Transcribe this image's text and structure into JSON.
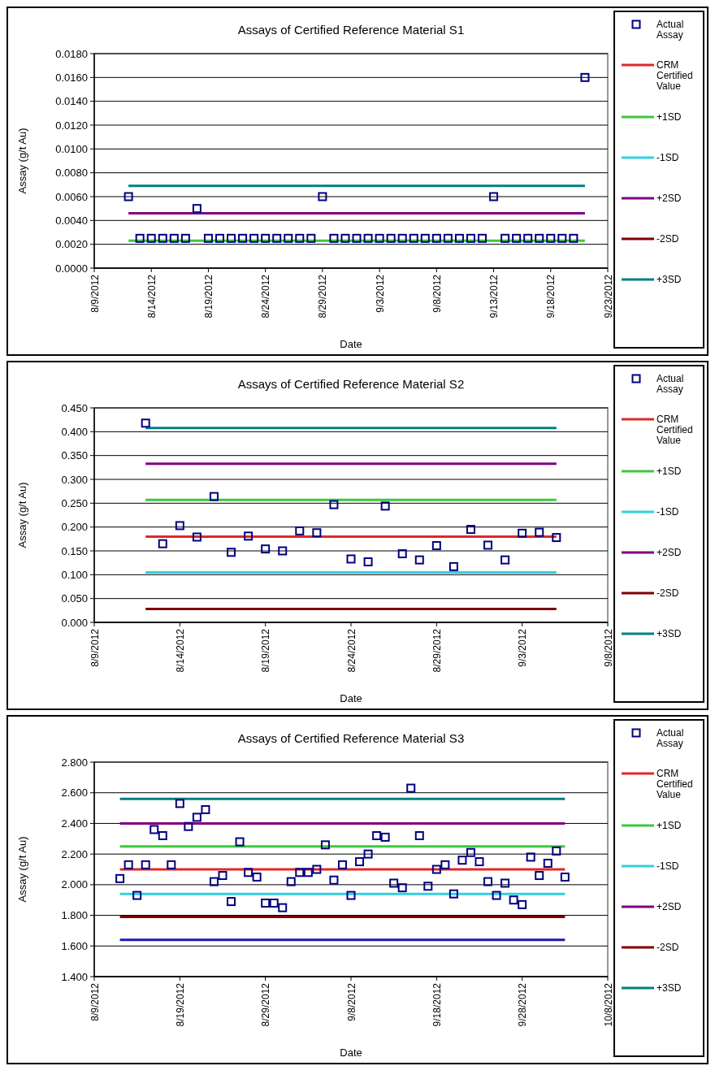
{
  "chart_data": [
    {
      "type": "scatter",
      "title": "Assays of Certified Reference Material  S1",
      "xlabel": "Date",
      "ylabel": "Assay (g/t Au)",
      "grid": "y",
      "legend": "right",
      "xlim": [
        "2012-08-09",
        "2012-09-23"
      ],
      "xticks": [
        {
          "value": "2012-08-09",
          "label": "8/9/2012"
        },
        {
          "value": "2012-08-14",
          "label": "8/14/2012"
        },
        {
          "value": "2012-08-19",
          "label": "8/19/2012"
        },
        {
          "value": "2012-08-24",
          "label": "8/24/2012"
        },
        {
          "value": "2012-08-29",
          "label": "8/29/2012"
        },
        {
          "value": "2012-09-03",
          "label": "9/3/2012"
        },
        {
          "value": "2012-09-08",
          "label": "9/8/2012"
        },
        {
          "value": "2012-09-13",
          "label": "9/13/2012"
        },
        {
          "value": "2012-09-18",
          "label": "9/18/2012"
        },
        {
          "value": "2012-09-23",
          "label": "9/23/2012"
        }
      ],
      "ylim": [
        0,
        0.018
      ],
      "yticks": [
        {
          "value": 0,
          "label": "0.0000"
        },
        {
          "value": 0.002,
          "label": "0.0020"
        },
        {
          "value": 0.004,
          "label": "0.0040"
        },
        {
          "value": 0.006,
          "label": "0.0060"
        },
        {
          "value": 0.008,
          "label": "0.0080"
        },
        {
          "value": 0.01,
          "label": "0.0100"
        },
        {
          "value": 0.012,
          "label": "0.0120"
        },
        {
          "value": 0.014,
          "label": "0.0140"
        },
        {
          "value": 0.016,
          "label": "0.0160"
        },
        {
          "value": 0.018,
          "label": "0.0180"
        }
      ],
      "series": [
        {
          "name": "CRM Certified Value",
          "type": "line",
          "color": "#e02828"
        },
        {
          "name": "+1SD",
          "type": "line",
          "color": "#3cc83c",
          "x": [
            "2012-08-12",
            "2012-09-21"
          ],
          "values": [
            0.0023,
            0.0023
          ]
        },
        {
          "name": "-1SD",
          "type": "line",
          "color": "#30d0e0"
        },
        {
          "name": "+2SD",
          "type": "line",
          "color": "#800080",
          "x": [
            "2012-08-12",
            "2012-09-21"
          ],
          "values": [
            0.0046,
            0.0046
          ]
        },
        {
          "name": "-2SD",
          "type": "line",
          "color": "#800000"
        },
        {
          "name": "+3SD",
          "type": "line",
          "color": "#008080",
          "x": [
            "2012-08-12",
            "2012-09-21"
          ],
          "values": [
            0.0069,
            0.0069
          ]
        },
        {
          "name": "Actual Assay",
          "type": "scatter",
          "marker": "square",
          "color": "#000080",
          "x": [
            "2012-08-12",
            "2012-08-13",
            "2012-08-14",
            "2012-08-15",
            "2012-08-16",
            "2012-08-17",
            "2012-08-18",
            "2012-08-19",
            "2012-08-20",
            "2012-08-21",
            "2012-08-22",
            "2012-08-23",
            "2012-08-24",
            "2012-08-25",
            "2012-08-26",
            "2012-08-27",
            "2012-08-28",
            "2012-08-29",
            "2012-08-30",
            "2012-08-31",
            "2012-09-01",
            "2012-09-02",
            "2012-09-03",
            "2012-09-04",
            "2012-09-05",
            "2012-09-06",
            "2012-09-07",
            "2012-09-08",
            "2012-09-09",
            "2012-09-10",
            "2012-09-11",
            "2012-09-12",
            "2012-09-13",
            "2012-09-14",
            "2012-09-15",
            "2012-09-16",
            "2012-09-17",
            "2012-09-18",
            "2012-09-19",
            "2012-09-20",
            "2012-09-21"
          ],
          "values": [
            0.006,
            0.0025,
            0.0025,
            0.0025,
            0.0025,
            0.0025,
            0.005,
            0.0025,
            0.0025,
            0.0025,
            0.0025,
            0.0025,
            0.0025,
            0.0025,
            0.0025,
            0.0025,
            0.0025,
            0.006,
            0.0025,
            0.0025,
            0.0025,
            0.0025,
            0.0025,
            0.0025,
            0.0025,
            0.0025,
            0.0025,
            0.0025,
            0.0025,
            0.0025,
            0.0025,
            0.0025,
            0.006,
            0.0025,
            0.0025,
            0.0025,
            0.0025,
            0.0025,
            0.0025,
            0.0025,
            0.016
          ]
        }
      ]
    },
    {
      "type": "scatter",
      "title": "Assays of Certified Reference Material  S2",
      "xlabel": "Date",
      "ylabel": "Assay (g/t Au)",
      "grid": "y",
      "legend": "right",
      "xlim": [
        "2012-08-09",
        "2012-09-08"
      ],
      "xticks": [
        {
          "value": "2012-08-09",
          "label": "8/9/2012"
        },
        {
          "value": "2012-08-14",
          "label": "8/14/2012"
        },
        {
          "value": "2012-08-19",
          "label": "8/19/2012"
        },
        {
          "value": "2012-08-24",
          "label": "8/24/2012"
        },
        {
          "value": "2012-08-29",
          "label": "8/29/2012"
        },
        {
          "value": "2012-09-03",
          "label": "9/3/2012"
        },
        {
          "value": "2012-09-08",
          "label": "9/8/2012"
        }
      ],
      "ylim": [
        0,
        0.45
      ],
      "yticks": [
        {
          "value": 0,
          "label": "0.000"
        },
        {
          "value": 0.05,
          "label": "0.050"
        },
        {
          "value": 0.1,
          "label": "0.100"
        },
        {
          "value": 0.15,
          "label": "0.150"
        },
        {
          "value": 0.2,
          "label": "0.200"
        },
        {
          "value": 0.25,
          "label": "0.250"
        },
        {
          "value": 0.3,
          "label": "0.300"
        },
        {
          "value": 0.35,
          "label": "0.350"
        },
        {
          "value": 0.4,
          "label": "0.400"
        },
        {
          "value": 0.45,
          "label": "0.450"
        }
      ],
      "series": [
        {
          "name": "CRM Certified Value",
          "type": "line",
          "color": "#e02828",
          "x": [
            "2012-08-12",
            "2012-09-05"
          ],
          "values": [
            0.18,
            0.18
          ]
        },
        {
          "name": "+1SD",
          "type": "line",
          "color": "#3cc83c",
          "x": [
            "2012-08-12",
            "2012-09-05"
          ],
          "values": [
            0.257,
            0.257
          ]
        },
        {
          "name": "-1SD",
          "type": "line",
          "color": "#30d0e0",
          "x": [
            "2012-08-12",
            "2012-09-05"
          ],
          "values": [
            0.105,
            0.105
          ]
        },
        {
          "name": "+2SD",
          "type": "line",
          "color": "#800080",
          "x": [
            "2012-08-12",
            "2012-09-05"
          ],
          "values": [
            0.333,
            0.333
          ]
        },
        {
          "name": "-2SD",
          "type": "line",
          "color": "#800000",
          "x": [
            "2012-08-12",
            "2012-09-05"
          ],
          "values": [
            0.028,
            0.028
          ]
        },
        {
          "name": "+3SD",
          "type": "line",
          "color": "#008080",
          "x": [
            "2012-08-12",
            "2012-09-05"
          ],
          "values": [
            0.408,
            0.408
          ]
        },
        {
          "name": "Actual Assay",
          "type": "scatter",
          "marker": "square",
          "color": "#000080",
          "x": [
            "2012-08-12",
            "2012-08-13",
            "2012-08-14",
            "2012-08-15",
            "2012-08-16",
            "2012-08-17",
            "2012-08-18",
            "2012-08-19",
            "2012-08-20",
            "2012-08-21",
            "2012-08-22",
            "2012-08-23",
            "2012-08-24",
            "2012-08-25",
            "2012-08-26",
            "2012-08-27",
            "2012-08-28",
            "2012-08-29",
            "2012-08-30",
            "2012-08-31",
            "2012-09-01",
            "2012-09-02",
            "2012-09-03",
            "2012-09-04",
            "2012-09-05"
          ],
          "values": [
            0.418,
            0.165,
            0.203,
            0.179,
            0.264,
            0.147,
            0.181,
            0.154,
            0.15,
            0.192,
            0.188,
            0.247,
            0.133,
            0.127,
            0.244,
            0.144,
            0.131,
            0.161,
            0.117,
            0.195,
            0.162,
            0.131,
            0.187,
            0.189,
            0.178
          ]
        }
      ]
    },
    {
      "type": "scatter",
      "title": "Assays of Certified Reference Material  S3",
      "xlabel": "Date",
      "ylabel": "Assay (g/t Au)",
      "grid": "y",
      "legend": "right",
      "xlim": [
        "2012-08-09",
        "2012-10-08"
      ],
      "xticks": [
        {
          "value": "2012-08-09",
          "label": "8/9/2012"
        },
        {
          "value": "2012-08-19",
          "label": "8/19/2012"
        },
        {
          "value": "2012-08-29",
          "label": "8/29/2012"
        },
        {
          "value": "2012-09-08",
          "label": "9/8/2012"
        },
        {
          "value": "2012-09-18",
          "label": "9/18/2012"
        },
        {
          "value": "2012-09-28",
          "label": "9/28/2012"
        },
        {
          "value": "2012-10-08",
          "label": "10/8/2012"
        }
      ],
      "ylim": [
        1.4,
        2.8
      ],
      "yticks": [
        {
          "value": 1.4,
          "label": "1.400"
        },
        {
          "value": 1.6,
          "label": "1.600"
        },
        {
          "value": 1.8,
          "label": "1.800"
        },
        {
          "value": 2.0,
          "label": "2.000"
        },
        {
          "value": 2.2,
          "label": "2.200"
        },
        {
          "value": 2.4,
          "label": "2.400"
        },
        {
          "value": 2.6,
          "label": "2.600"
        },
        {
          "value": 2.8,
          "label": "2.800"
        }
      ],
      "series": [
        {
          "name": "CRM Certified Value",
          "type": "line",
          "color": "#e02828",
          "x": [
            "2012-08-12",
            "2012-10-03"
          ],
          "values": [
            2.1,
            2.1
          ]
        },
        {
          "name": "+1SD",
          "type": "line",
          "color": "#3cc83c",
          "x": [
            "2012-08-12",
            "2012-10-03"
          ],
          "values": [
            2.25,
            2.25
          ]
        },
        {
          "name": "-1SD",
          "type": "line",
          "color": "#30d0e0",
          "x": [
            "2012-08-12",
            "2012-10-03"
          ],
          "values": [
            1.94,
            1.94
          ]
        },
        {
          "name": "+2SD",
          "type": "line",
          "color": "#800080",
          "x": [
            "2012-08-12",
            "2012-10-03"
          ],
          "values": [
            2.4,
            2.4
          ]
        },
        {
          "name": "-2SD",
          "type": "line",
          "color": "#800000",
          "x": [
            "2012-08-12",
            "2012-10-03"
          ],
          "values": [
            1.79,
            1.79
          ]
        },
        {
          "name": "+3SD",
          "type": "line",
          "color": "#008080",
          "x": [
            "2012-08-12",
            "2012-10-03"
          ],
          "values": [
            2.56,
            2.56
          ]
        },
        {
          "type": "line",
          "color": "#1a1ab0",
          "x": [
            "2012-08-12",
            "2012-10-03"
          ],
          "values": [
            1.64,
            1.64
          ]
        },
        {
          "name": "Actual Assay",
          "type": "scatter",
          "marker": "square",
          "color": "#000080",
          "x": [
            "2012-08-12",
            "2012-08-13",
            "2012-08-14",
            "2012-08-15",
            "2012-08-16",
            "2012-08-17",
            "2012-08-18",
            "2012-08-19",
            "2012-08-20",
            "2012-08-21",
            "2012-08-22",
            "2012-08-23",
            "2012-08-24",
            "2012-08-25",
            "2012-08-26",
            "2012-08-27",
            "2012-08-28",
            "2012-08-29",
            "2012-08-30",
            "2012-08-31",
            "2012-09-01",
            "2012-09-02",
            "2012-09-03",
            "2012-09-04",
            "2012-09-05",
            "2012-09-06",
            "2012-09-07",
            "2012-09-08",
            "2012-09-09",
            "2012-09-10",
            "2012-09-11",
            "2012-09-12",
            "2012-09-13",
            "2012-09-14",
            "2012-09-15",
            "2012-09-16",
            "2012-09-17",
            "2012-09-18",
            "2012-09-19",
            "2012-09-20",
            "2012-09-21",
            "2012-09-22",
            "2012-09-23",
            "2012-09-24",
            "2012-09-25",
            "2012-09-26",
            "2012-09-27",
            "2012-09-28",
            "2012-09-29",
            "2012-09-30",
            "2012-10-01",
            "2012-10-02",
            "2012-10-03"
          ],
          "values": [
            2.04,
            2.13,
            1.93,
            2.13,
            2.36,
            2.32,
            2.13,
            2.53,
            2.38,
            2.44,
            2.49,
            2.02,
            2.06,
            1.89,
            2.28,
            2.08,
            2.05,
            1.88,
            1.88,
            1.85,
            2.02,
            2.08,
            2.08,
            2.1,
            2.26,
            2.03,
            2.13,
            1.93,
            2.15,
            2.2,
            2.32,
            2.31,
            2.01,
            1.98,
            2.63,
            2.32,
            1.99,
            2.1,
            2.13,
            1.94,
            2.16,
            2.21,
            2.15,
            2.02,
            1.93,
            2.01,
            1.9,
            1.87,
            2.18,
            2.06,
            2.14,
            2.22,
            2.05
          ]
        }
      ]
    }
  ]
}
